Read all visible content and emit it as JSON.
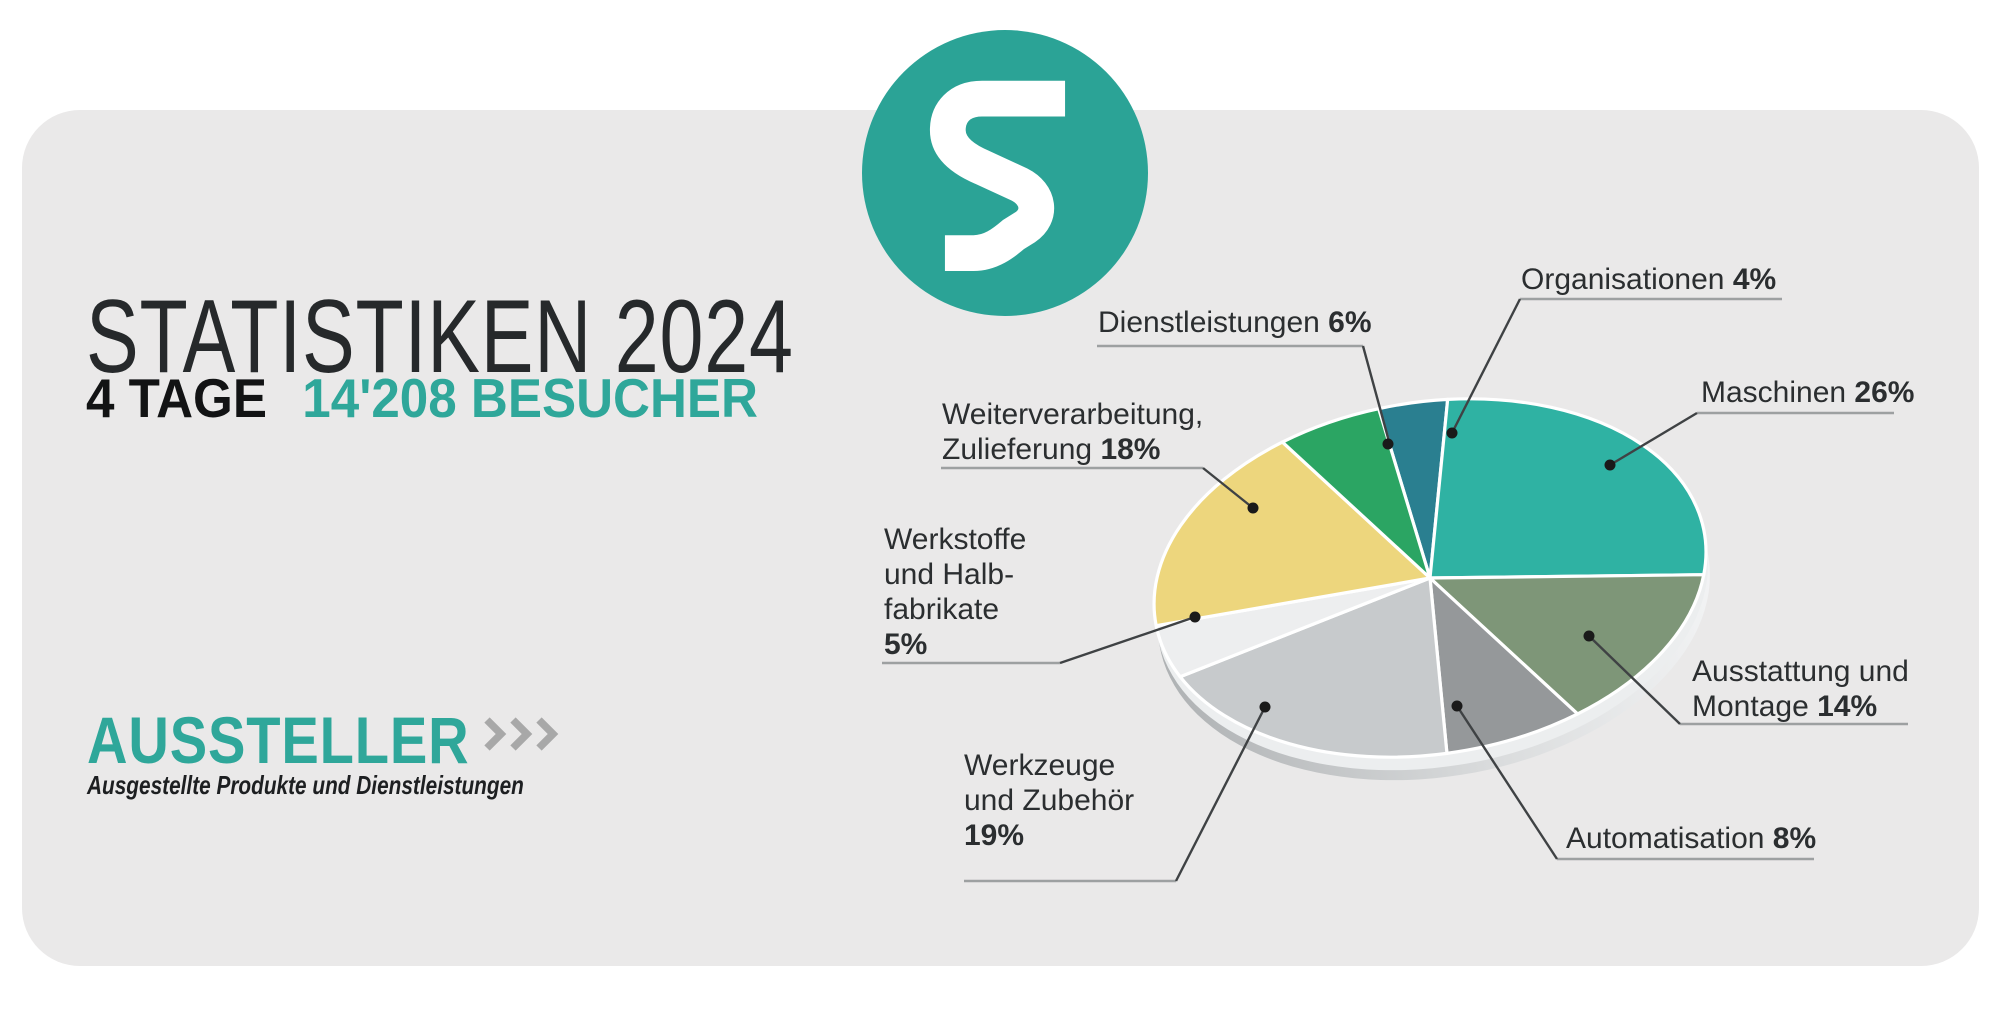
{
  "page": {
    "background": "#FFFFFF",
    "panel_background": "#EAE9E9"
  },
  "logo": {
    "letter": "S",
    "circle_color": "#2BA396",
    "letter_color": "#FFFFFF"
  },
  "header": {
    "title": "STATISTIKEN 2024",
    "days": "4 TAGE",
    "visitors": "14'208 BESUCHER"
  },
  "section": {
    "title": "AUSSTELLER",
    "subtitle": "Ausgestellte Produkte und Dienstleistungen"
  },
  "icons": {
    "chevrons": "»»»",
    "logo_s": "S"
  },
  "theme": {
    "accent": "#2FA79A",
    "text_dark": "#26292B",
    "label_color": "#2B2E30",
    "leader_line": "#3F4244",
    "underline": "#9DA0A1",
    "dot": "#1A1A1A"
  },
  "chart_data": {
    "type": "pie",
    "unit": "%",
    "style": "3d-tilted",
    "legend_position": "around-with-leader-lines",
    "start_angle_deg": -95,
    "clockwise": true,
    "slices": [
      {
        "label": "Organisationen",
        "value": 4,
        "pct": "4%",
        "color": "#2A7F90",
        "lines": [
          "Organisationen"
        ]
      },
      {
        "label": "Maschinen",
        "value": 26,
        "pct": "26%",
        "color": "#2FB2A3",
        "lines": [
          "Maschinen"
        ]
      },
      {
        "label": "Ausstattung und Montage",
        "value": 14,
        "pct": "14%",
        "color": "#7E9678",
        "lines": [
          "Ausstattung und",
          "Montage"
        ]
      },
      {
        "label": "Automatisation",
        "value": 8,
        "pct": "8%",
        "color": "#95989A",
        "lines": [
          "Automatisation"
        ]
      },
      {
        "label": "Werkzeuge und Zubehör",
        "value": 19,
        "pct": "19%",
        "color": "#C7CACC",
        "lines": [
          "Werkzeuge",
          "und Zubehör"
        ]
      },
      {
        "label": "Werkstoffe und Halbfabrikate",
        "value": 5,
        "pct": "5%",
        "color": "#EDEEEF",
        "lines": [
          "Werkstoffe",
          "und Halb-",
          "fabrikate"
        ]
      },
      {
        "label": "Weiterverarbeitung, Zulieferung",
        "value": 18,
        "pct": "18%",
        "color": "#EDD67D",
        "lines": [
          "Weiterverarbeitung,",
          "Zulieferung"
        ]
      },
      {
        "label": "Dienstleistungen",
        "value": 6,
        "pct": "6%",
        "color": "#2BA563",
        "lines": [
          "Dienstleistungen"
        ]
      }
    ]
  }
}
